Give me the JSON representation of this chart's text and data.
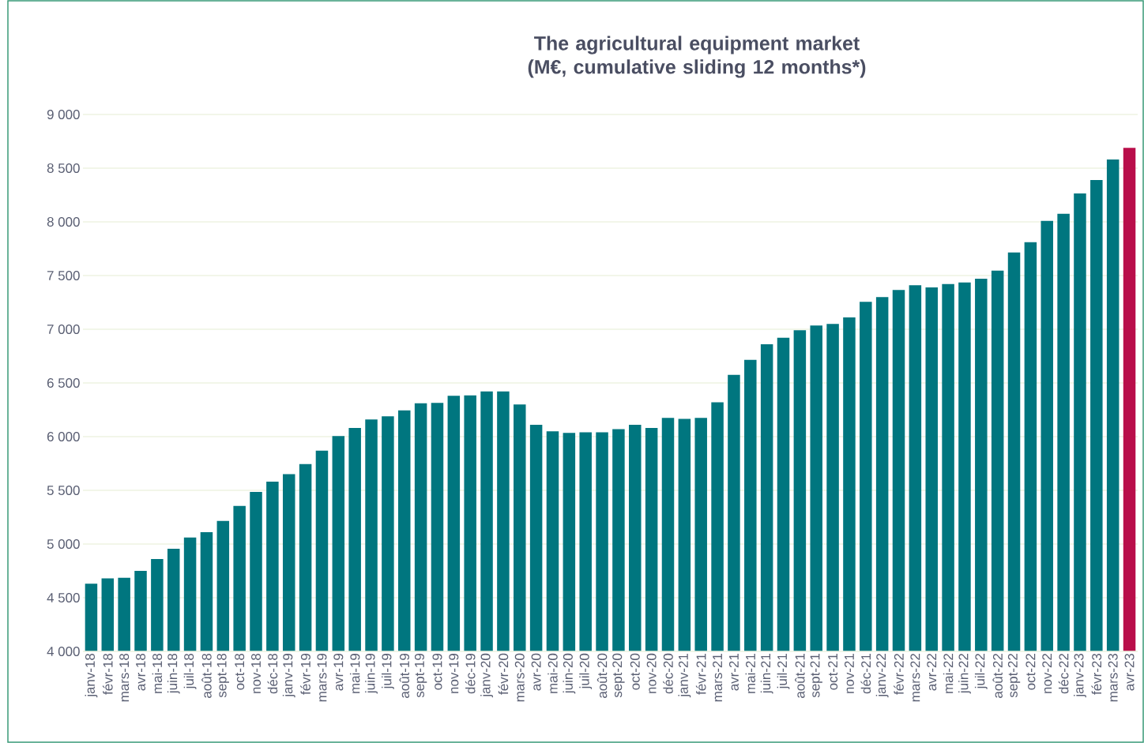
{
  "chart_data": {
    "type": "bar",
    "title": "The agricultural equipment market (M€, cumulative sliding 12 months*)",
    "categories": [
      "janv-18",
      "févr-18",
      "mars-18",
      "avr-18",
      "mai-18",
      "juin-18",
      "juil-18",
      "août-18",
      "sept-18",
      "oct-18",
      "nov-18",
      "déc-18",
      "janv-19",
      "févr-19",
      "mars-19",
      "avr-19",
      "mai-19",
      "juin-19",
      "juil-19",
      "août-19",
      "sept-19",
      "oct-19",
      "nov-19",
      "déc-19",
      "janv-20",
      "févr-20",
      "mars-20",
      "avr-20",
      "mai-20",
      "juin-20",
      "juil-20",
      "août-20",
      "sept-20",
      "oct-20",
      "nov-20",
      "déc-20",
      "janv-21",
      "févr-21",
      "mars-21",
      "avr-21",
      "mai-21",
      "juin-21",
      "juil-21",
      "août-21",
      "sept-21",
      "oct-21",
      "nov-21",
      "déc-21",
      "janv-22",
      "févr-22",
      "mars-22",
      "avr-22",
      "mai-22",
      "juin-22",
      "juil-22",
      "août-22",
      "sept-22",
      "oct-22",
      "nov-22",
      "déc-22",
      "janv-23",
      "févr-23",
      "mars-23",
      "avr-23"
    ],
    "values": [
      4630,
      4680,
      4685,
      4750,
      4860,
      4955,
      5060,
      5110,
      5215,
      5355,
      5485,
      5580,
      5650,
      5745,
      5870,
      6005,
      6080,
      6160,
      6190,
      6245,
      6310,
      6315,
      6380,
      6385,
      6420,
      6420,
      6300,
      6110,
      6050,
      6035,
      6040,
      6040,
      6070,
      6110,
      6080,
      6175,
      6165,
      6175,
      6320,
      6575,
      6715,
      6860,
      6920,
      6990,
      7035,
      7050,
      7110,
      7255,
      7300,
      7365,
      7410,
      7390,
      7420,
      7435,
      7470,
      7545,
      7715,
      7810,
      8010,
      8075,
      8265,
      8390,
      8580,
      8690
    ],
    "colors": [
      "#00767f",
      "#00767f",
      "#00767f",
      "#00767f",
      "#00767f",
      "#00767f",
      "#00767f",
      "#00767f",
      "#00767f",
      "#00767f",
      "#00767f",
      "#00767f",
      "#00767f",
      "#00767f",
      "#00767f",
      "#00767f",
      "#00767f",
      "#00767f",
      "#00767f",
      "#00767f",
      "#00767f",
      "#00767f",
      "#00767f",
      "#00767f",
      "#00767f",
      "#00767f",
      "#00767f",
      "#00767f",
      "#00767f",
      "#00767f",
      "#00767f",
      "#00767f",
      "#00767f",
      "#00767f",
      "#00767f",
      "#00767f",
      "#00767f",
      "#00767f",
      "#00767f",
      "#00767f",
      "#00767f",
      "#00767f",
      "#00767f",
      "#00767f",
      "#00767f",
      "#00767f",
      "#00767f",
      "#00767f",
      "#00767f",
      "#00767f",
      "#00767f",
      "#00767f",
      "#00767f",
      "#00767f",
      "#00767f",
      "#00767f",
      "#00767f",
      "#00767f",
      "#00767f",
      "#00767f",
      "#00767f",
      "#00767f",
      "#00767f",
      "#b90e4a"
    ],
    "ylim": [
      4000,
      9000
    ],
    "yticks": [
      {
        "value": 4000,
        "label": "4 000"
      },
      {
        "value": 4500,
        "label": "4 500"
      },
      {
        "value": 5000,
        "label": "5 000"
      },
      {
        "value": 5500,
        "label": "5 500"
      },
      {
        "value": 6000,
        "label": "6 000"
      },
      {
        "value": 6500,
        "label": "6 500"
      },
      {
        "value": 7000,
        "label": "7 000"
      },
      {
        "value": 7500,
        "label": "7 500"
      },
      {
        "value": 8000,
        "label": "8 000"
      },
      {
        "value": 8500,
        "label": "8 500"
      },
      {
        "value": 9000,
        "label": "9 000"
      }
    ],
    "grid": "y"
  }
}
